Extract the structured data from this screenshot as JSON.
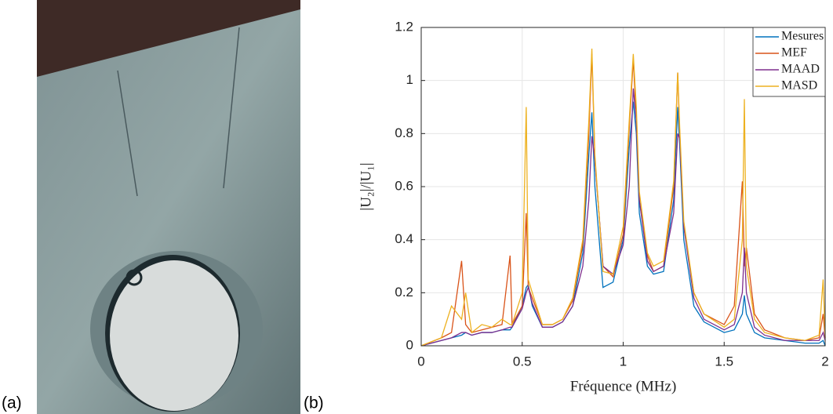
{
  "panels": {
    "a": "(a)",
    "b": "(b)"
  },
  "chart_data": {
    "type": "line",
    "xlabel": "Fréquence (MHz)",
    "ylabel": "|U₂|/|U₁|",
    "x": [
      0,
      0.1,
      0.15,
      0.2,
      0.22,
      0.25,
      0.3,
      0.35,
      0.4,
      0.44,
      0.45,
      0.5,
      0.52,
      0.53,
      0.55,
      0.6,
      0.65,
      0.7,
      0.75,
      0.8,
      0.83,
      0.845,
      0.86,
      0.9,
      0.95,
      1.0,
      1.03,
      1.05,
      1.065,
      1.08,
      1.12,
      1.15,
      1.2,
      1.25,
      1.27,
      1.28,
      1.3,
      1.35,
      1.4,
      1.5,
      1.55,
      1.59,
      1.6,
      1.61,
      1.65,
      1.7,
      1.8,
      1.9,
      1.97,
      1.99,
      2.0
    ],
    "series": [
      {
        "name": "Mesures",
        "color": "#0072BD",
        "values": [
          0,
          0.02,
          0.03,
          0.04,
          0.05,
          0.04,
          0.05,
          0.05,
          0.06,
          0.06,
          0.07,
          0.15,
          0.22,
          0.23,
          0.15,
          0.07,
          0.07,
          0.09,
          0.15,
          0.35,
          0.72,
          0.88,
          0.6,
          0.22,
          0.24,
          0.4,
          0.75,
          0.92,
          0.8,
          0.5,
          0.3,
          0.27,
          0.28,
          0.55,
          0.9,
          0.75,
          0.4,
          0.15,
          0.09,
          0.05,
          0.06,
          0.12,
          0.19,
          0.12,
          0.05,
          0.03,
          0.02,
          0.01,
          0.01,
          0.02,
          0
        ]
      },
      {
        "name": "MEF",
        "color": "#D95319",
        "values": [
          0,
          0.03,
          0.05,
          0.32,
          0.08,
          0.05,
          0.06,
          0.07,
          0.08,
          0.34,
          0.08,
          0.15,
          0.5,
          0.22,
          0.18,
          0.08,
          0.08,
          0.1,
          0.17,
          0.38,
          0.8,
          1.1,
          0.7,
          0.3,
          0.26,
          0.42,
          0.82,
          1.08,
          0.85,
          0.55,
          0.34,
          0.28,
          0.3,
          0.6,
          1.03,
          0.8,
          0.45,
          0.2,
          0.12,
          0.08,
          0.15,
          0.62,
          0.3,
          0.37,
          0.12,
          0.06,
          0.03,
          0.02,
          0.03,
          0.12,
          0.03
        ]
      },
      {
        "name": "MAAD",
        "color": "#7E2F8E",
        "values": [
          0,
          0.02,
          0.03,
          0.05,
          0.05,
          0.04,
          0.05,
          0.05,
          0.06,
          0.07,
          0.07,
          0.14,
          0.2,
          0.22,
          0.16,
          0.07,
          0.07,
          0.09,
          0.15,
          0.3,
          0.55,
          0.79,
          0.7,
          0.3,
          0.27,
          0.38,
          0.6,
          0.97,
          0.85,
          0.55,
          0.32,
          0.28,
          0.3,
          0.5,
          0.8,
          0.78,
          0.45,
          0.18,
          0.1,
          0.06,
          0.08,
          0.2,
          0.37,
          0.2,
          0.07,
          0.04,
          0.02,
          0.02,
          0.02,
          0.05,
          0.02
        ]
      },
      {
        "name": "MASD",
        "color": "#EDB120",
        "values": [
          0,
          0.03,
          0.15,
          0.1,
          0.2,
          0.05,
          0.08,
          0.07,
          0.1,
          0.08,
          0.08,
          0.2,
          0.9,
          0.25,
          0.2,
          0.08,
          0.08,
          0.1,
          0.18,
          0.4,
          0.85,
          1.12,
          0.72,
          0.28,
          0.27,
          0.45,
          0.85,
          1.1,
          0.9,
          0.58,
          0.35,
          0.3,
          0.32,
          0.62,
          1.03,
          0.82,
          0.47,
          0.2,
          0.12,
          0.07,
          0.1,
          0.4,
          0.93,
          0.3,
          0.1,
          0.05,
          0.03,
          0.02,
          0.04,
          0.25,
          0.03
        ]
      }
    ],
    "xlim": [
      0,
      2
    ],
    "xticks": [
      0,
      0.5,
      1,
      1.5,
      2
    ],
    "ylim": [
      0,
      1.2
    ],
    "yticks": [
      0,
      0.2,
      0.4,
      0.6,
      0.8,
      1,
      1.2
    ],
    "grid": true,
    "legend": "top-right"
  }
}
